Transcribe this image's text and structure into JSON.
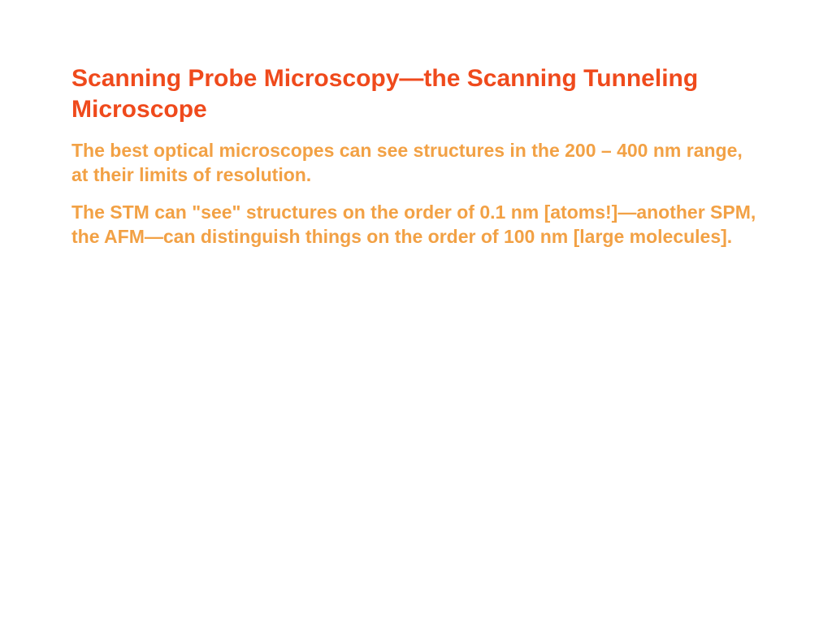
{
  "slide": {
    "title": "Scanning Probe Microscopy—the Scanning Tunneling Microscope",
    "title_color": "#ef4a1c",
    "title_fontsize": 30,
    "paragraphs": [
      {
        "text": "The best optical microscopes can see structures in the 200 – 400 nm range, at their limits of resolution.",
        "color": "#f2a145",
        "fontsize": 23
      },
      {
        "text": "The STM can \"see\" structures on the order of 0.1 nm [atoms!]—another SPM, the AFM—can distinguish things on the order of 100 nm [large molecules].",
        "color": "#f2a145",
        "fontsize": 23
      }
    ],
    "background_color": "#ffffff"
  }
}
